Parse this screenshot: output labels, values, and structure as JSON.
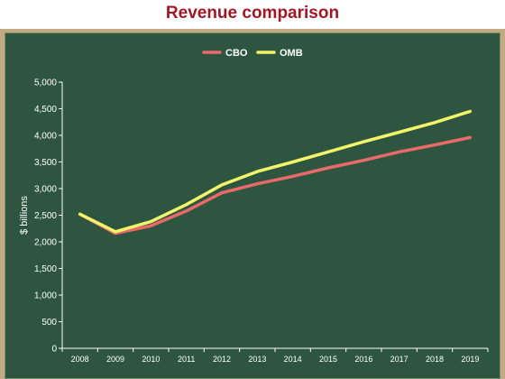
{
  "chart_data": {
    "type": "line",
    "title": "Revenue comparison",
    "ylabel": "$ billions",
    "xlabel": "",
    "ylim": [
      0,
      5000
    ],
    "yticks": [
      0,
      500,
      1000,
      1500,
      2000,
      2500,
      3000,
      3500,
      4000,
      4500,
      5000
    ],
    "ytick_labels": [
      "0",
      "500",
      "1,000",
      "1,500",
      "2,000",
      "2,500",
      "3,000",
      "3,500",
      "4,000",
      "4,500",
      "5,000"
    ],
    "categories": [
      "2008",
      "2009",
      "2010",
      "2011",
      "2012",
      "2013",
      "2014",
      "2015",
      "2016",
      "2017",
      "2018",
      "2019"
    ],
    "legend_position": "top-center",
    "grid": false,
    "series": [
      {
        "name": "CBO",
        "color": "#ea6a6a",
        "values": [
          2520,
          2160,
          2300,
          2580,
          2920,
          3090,
          3230,
          3390,
          3530,
          3690,
          3820,
          3960
        ]
      },
      {
        "name": "OMB",
        "color": "#f4f46a",
        "values": [
          2520,
          2190,
          2380,
          2700,
          3070,
          3320,
          3500,
          3690,
          3880,
          4060,
          4240,
          4450
        ]
      }
    ],
    "background": "#2e5540",
    "frame_color": "#c3a984",
    "title_color": "#a11824"
  }
}
